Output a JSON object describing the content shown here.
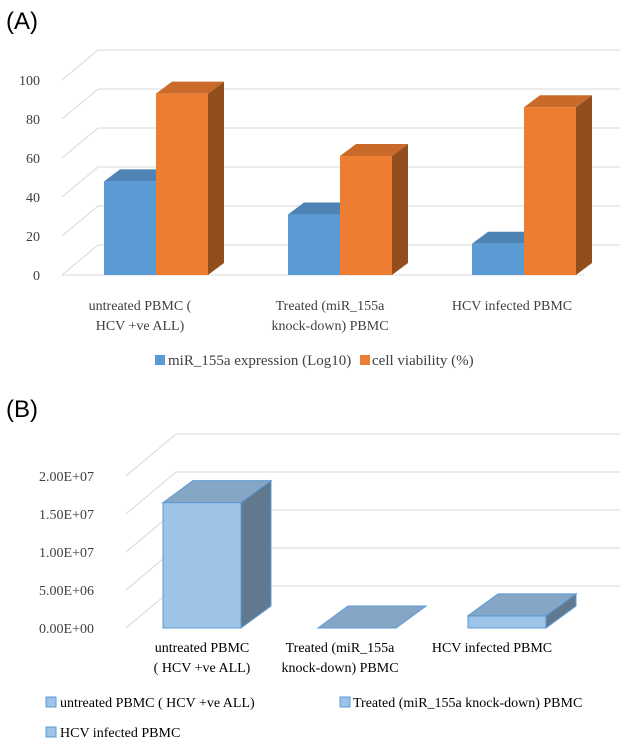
{
  "panels": [
    {
      "label": "(A)"
    },
    {
      "label": "(B)"
    }
  ],
  "chart_data": [
    {
      "type": "bar",
      "categories": [
        "untreated PBMC          (\nHCV +ve ALL)",
        "Treated (miR_155a\nknock-down) PBMC",
        "HCV infected PBMC"
      ],
      "category_lines": [
        [
          "untreated PBMC          (",
          "HCV +ve ALL)"
        ],
        [
          "Treated (miR_155a",
          "knock-down) PBMC"
        ],
        [
          "HCV infected PBMC"
        ]
      ],
      "series": [
        {
          "name": "miR_155a expression (Log10)",
          "values": [
            48,
            31,
            16
          ],
          "color": "#5B9BD5"
        },
        {
          "name": "cell viability (%)",
          "values": [
            93,
            61,
            86
          ],
          "color": "#ED7D31"
        }
      ],
      "ylim": [
        0,
        100
      ],
      "yticks": [
        "0",
        "20",
        "40",
        "60",
        "80",
        "100"
      ],
      "grid": true,
      "legend": "bottom",
      "title": "",
      "xlabel": "",
      "ylabel": ""
    },
    {
      "type": "bar",
      "categories": [
        "untreated PBMC          ( HCV +ve ALL)",
        "Treated (miR_155a knock-down) PBMC",
        "HCV infected PBMC"
      ],
      "category_lines": [
        [
          "untreated PBMC",
          "( HCV +ve ALL)"
        ],
        [
          "Treated (miR_155a",
          "knock-down) PBMC"
        ],
        [
          "HCV infected PBMC"
        ]
      ],
      "values": [
        16500000,
        0,
        1600000
      ],
      "colors": [
        "#9DC3E6",
        "#9DC3E6",
        "#9DC3E6"
      ],
      "ylim": [
        0,
        20000000
      ],
      "yticks": [
        "0.00E+00",
        "5.00E+06",
        "1.00E+07",
        "1.50E+07",
        "2.00E+07"
      ],
      "grid": true,
      "legend": "bottom",
      "legend_entries": [
        "untreated PBMC          ( HCV +ve ALL)",
        "Treated (miR_155a knock-down) PBMC",
        "HCV infected PBMC"
      ],
      "title": "",
      "xlabel": "",
      "ylabel": ""
    }
  ]
}
